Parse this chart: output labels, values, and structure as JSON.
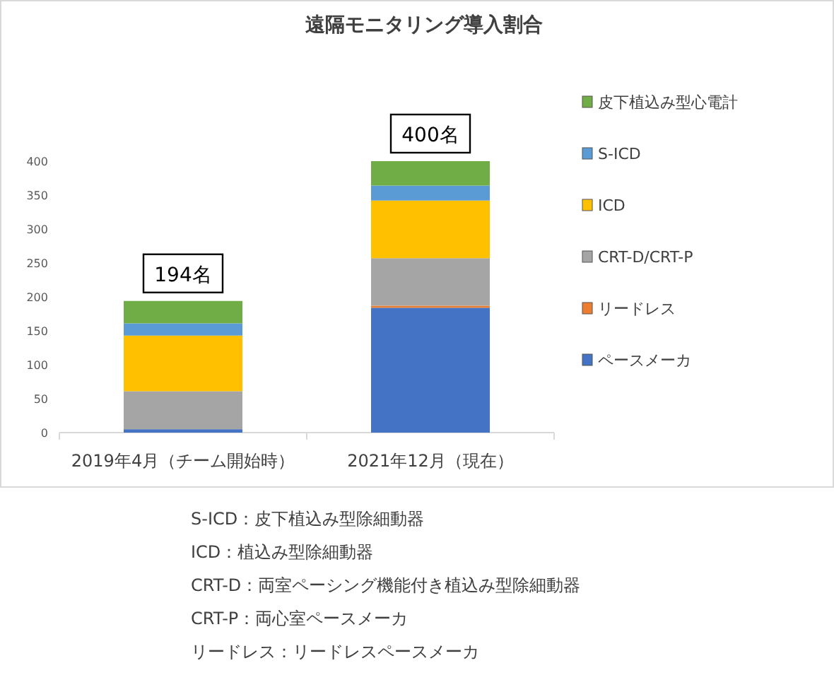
{
  "chart_data": {
    "type": "bar",
    "stacked": true,
    "title": "遠隔モニタリング導入割合",
    "categories": [
      "2019年4月（チーム開始時）",
      "2021年12月（現在）"
    ],
    "series": [
      {
        "name": "ペースメーカ",
        "color": "#4472c4",
        "values": [
          5,
          184
        ]
      },
      {
        "name": "リードレス",
        "color": "#ed7d31",
        "values": [
          0,
          3
        ]
      },
      {
        "name": "CRT-D/CRT-P",
        "color": "#a5a5a5",
        "values": [
          56,
          70
        ]
      },
      {
        "name": "ICD",
        "color": "#ffc000",
        "values": [
          82,
          85
        ]
      },
      {
        "name": "S-ICD",
        "color": "#5b9bd5",
        "values": [
          18,
          22
        ]
      },
      {
        "name": "皮下植込み型心電計",
        "color": "#70ad47",
        "values": [
          33,
          36
        ]
      }
    ],
    "totals": [
      "194名",
      "400名"
    ],
    "ylim": [
      0,
      400
    ],
    "yticks": [
      0,
      50,
      100,
      150,
      200,
      250,
      300,
      350,
      400
    ],
    "legend": "right",
    "annotations": [
      "S-ICD：皮下植込み型除細動器",
      "ICD：植込み型除細動器",
      "CRT-D：両室ペーシング機能付き植込み型除細動器",
      "CRT-P：両心室ペースメーカ",
      "リードレス：リードレスペースメーカ"
    ]
  }
}
